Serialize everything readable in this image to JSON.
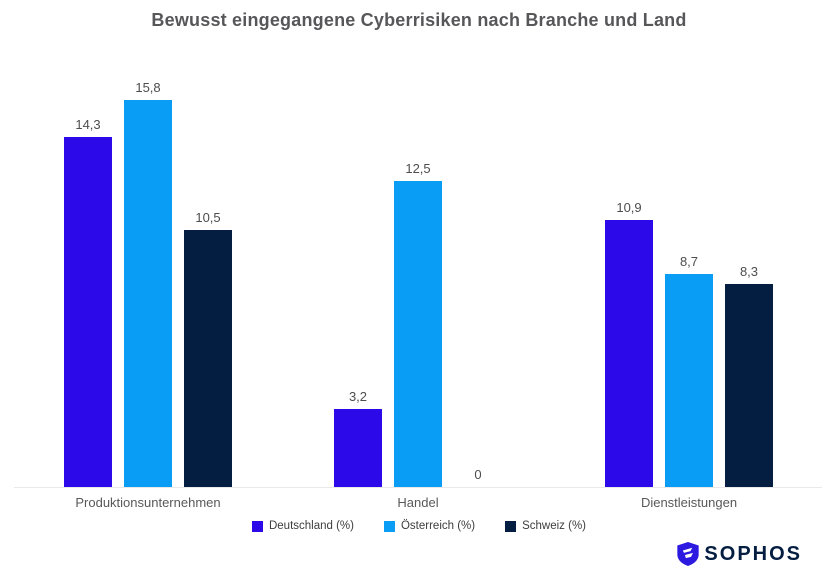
{
  "title": "Bewusst eingegangene Cyberrisiken nach Branche und Land",
  "chart_data": {
    "type": "bar",
    "title": "Bewusst eingegangene Cyberrisiken nach Branche und Land",
    "categories": [
      "Produktionsunternehmen",
      "Handel",
      "Dienstleistungen"
    ],
    "series": [
      {
        "name": "Deutschland (%)",
        "color": "#2b09e8",
        "values": [
          14.3,
          3.2,
          10.9
        ]
      },
      {
        "name": "Österreich (%)",
        "color": "#0a9df5",
        "values": [
          15.8,
          12.5,
          8.7
        ]
      },
      {
        "name": "Schweiz (%)",
        "color": "#041e42",
        "values": [
          10.5,
          0,
          8.3
        ]
      }
    ],
    "xlabel": "",
    "ylabel": "",
    "ylim": [
      0,
      16
    ],
    "grid": false,
    "y_axis_visible": false,
    "data_labels": true,
    "decimal_separator": ",",
    "legend_position": "bottom"
  },
  "logo": {
    "text": "SOPHOS",
    "icon": "shield-bolt-icon",
    "text_color": "#041e42",
    "shield_color": "#2c1ae0"
  }
}
